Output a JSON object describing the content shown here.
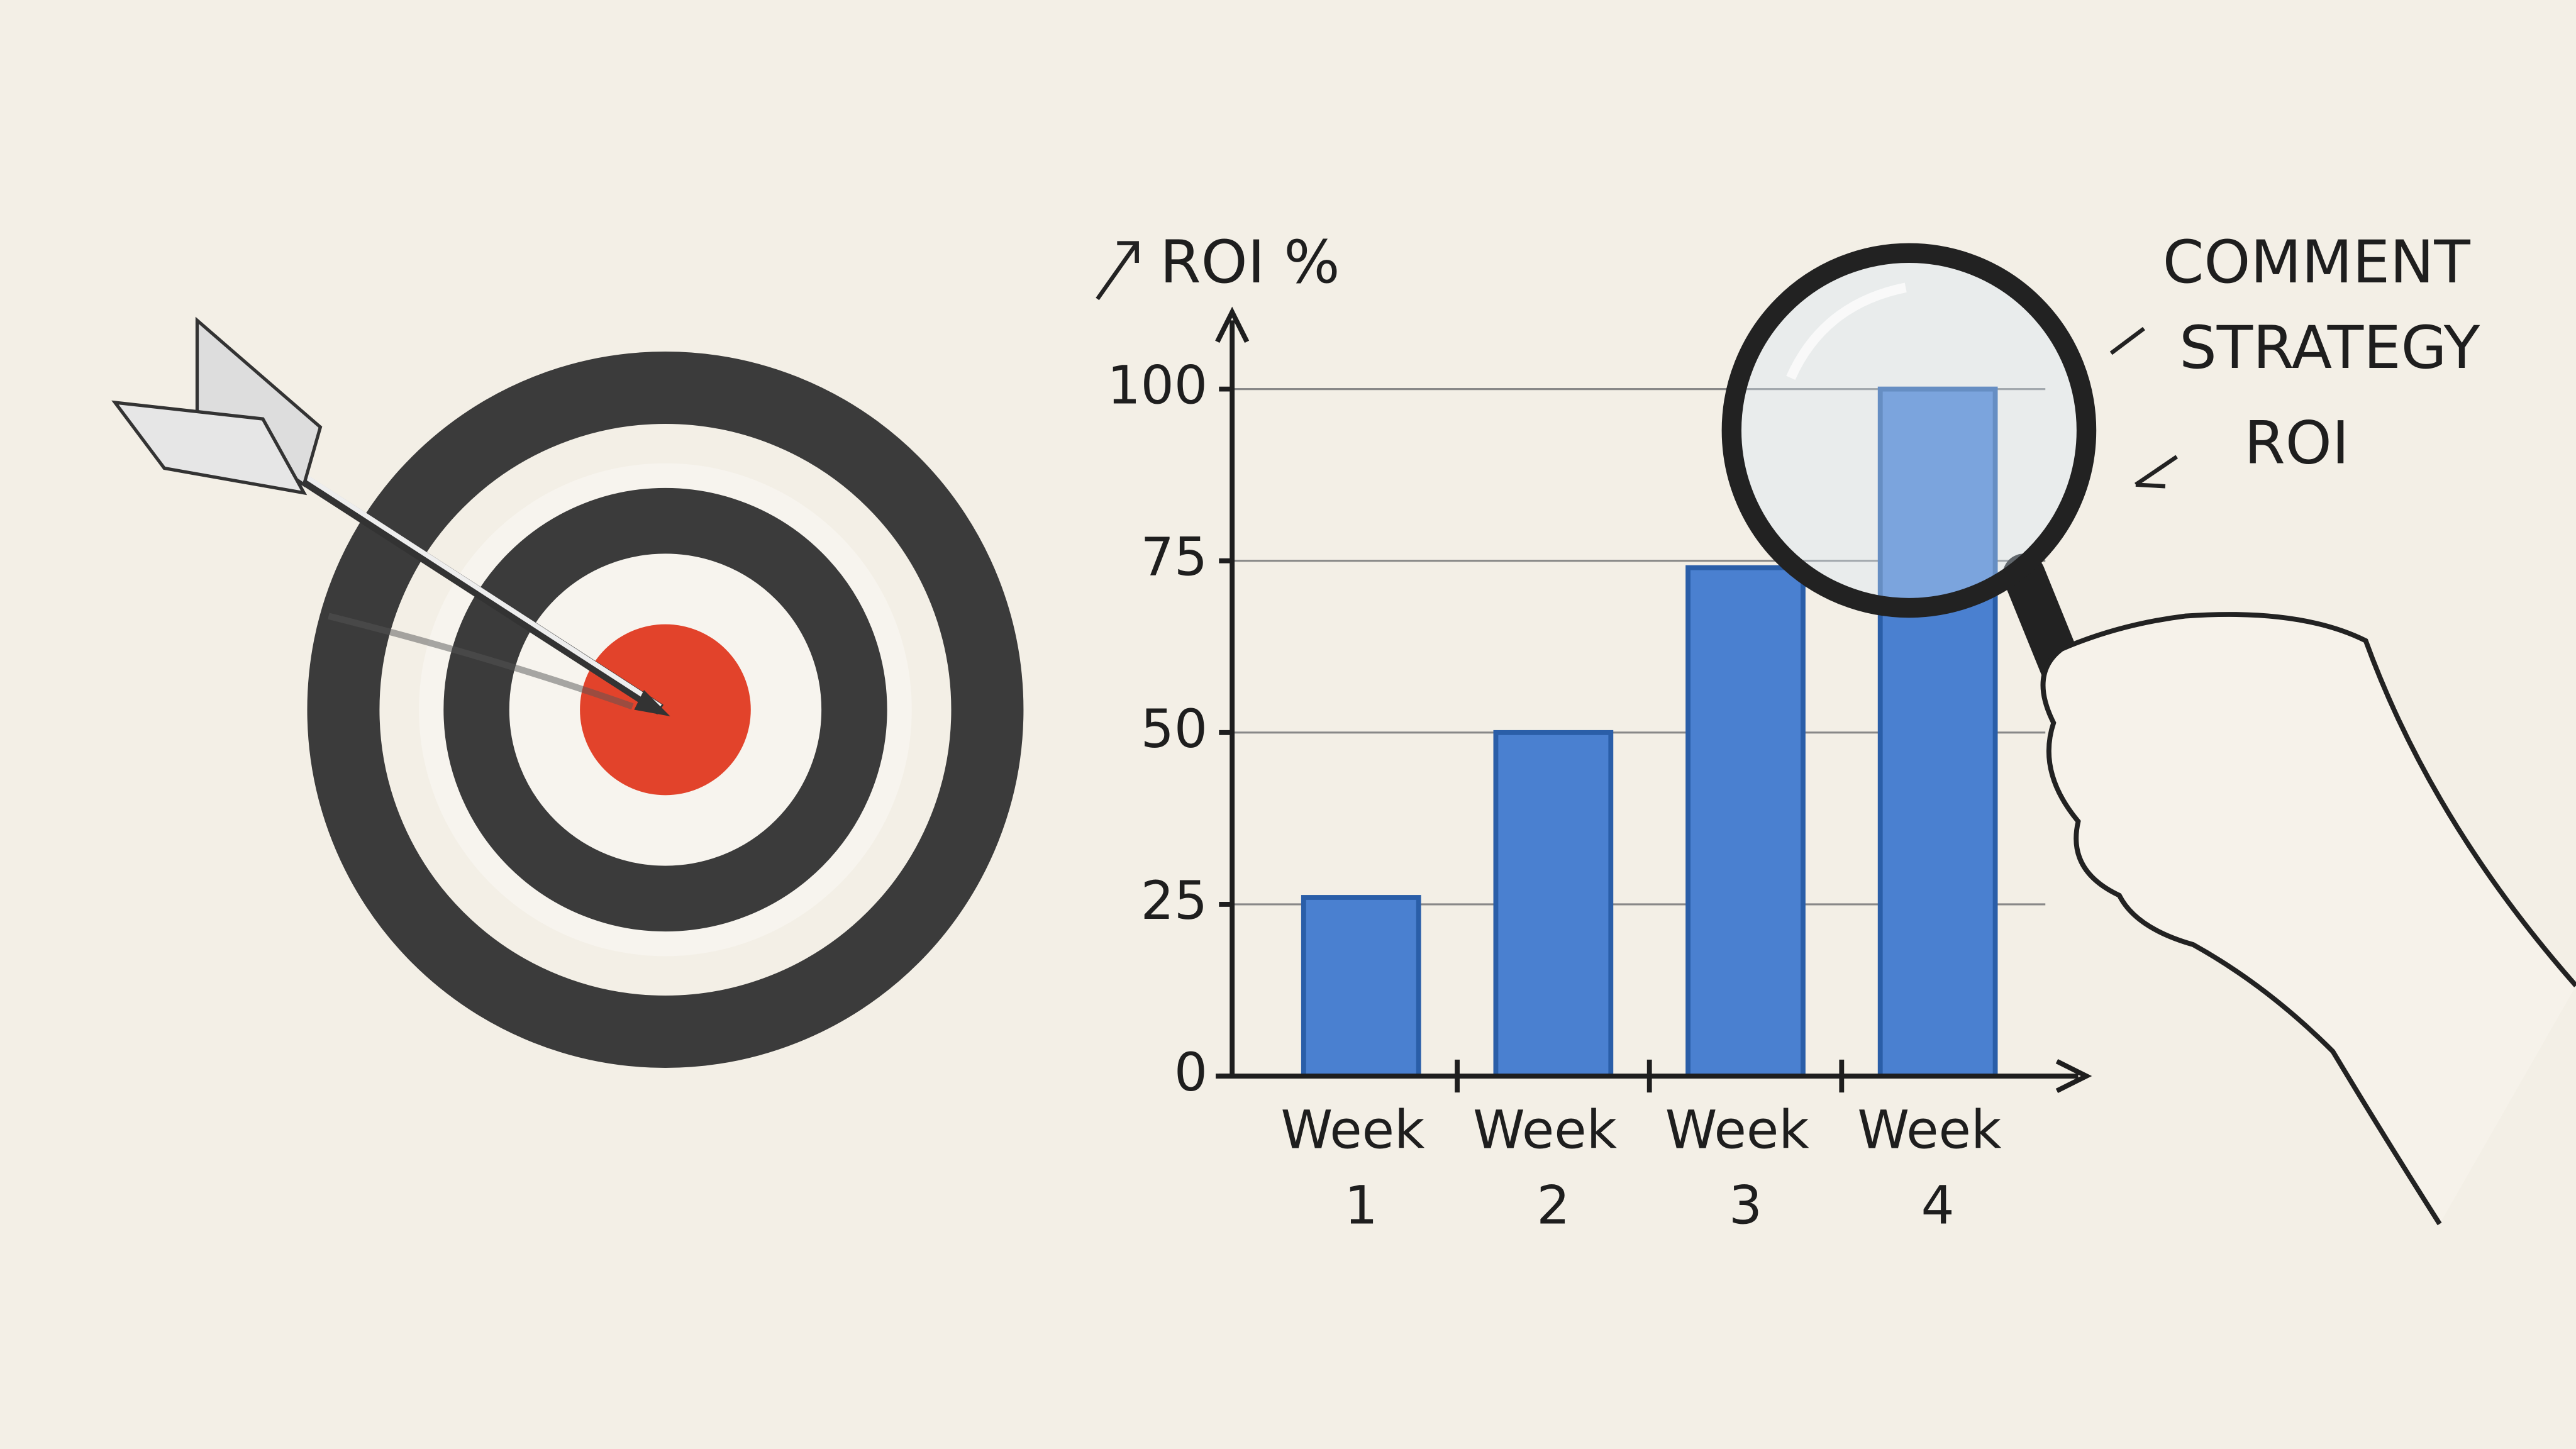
{
  "chart_data": {
    "type": "bar",
    "y_label": "ROI %",
    "categories": [
      "Week 1",
      "Week 2",
      "Week 3",
      "Week 4"
    ],
    "values": [
      26,
      50,
      74,
      100
    ],
    "color": "#4a80d0",
    "edge_color": "#2a5ea8",
    "ylim": [
      0,
      110
    ],
    "yticks": [
      0,
      25,
      50,
      75,
      100
    ],
    "grid": true,
    "annotations": [
      "COMMENT",
      "STRATEGY",
      "ROI"
    ]
  }
}
